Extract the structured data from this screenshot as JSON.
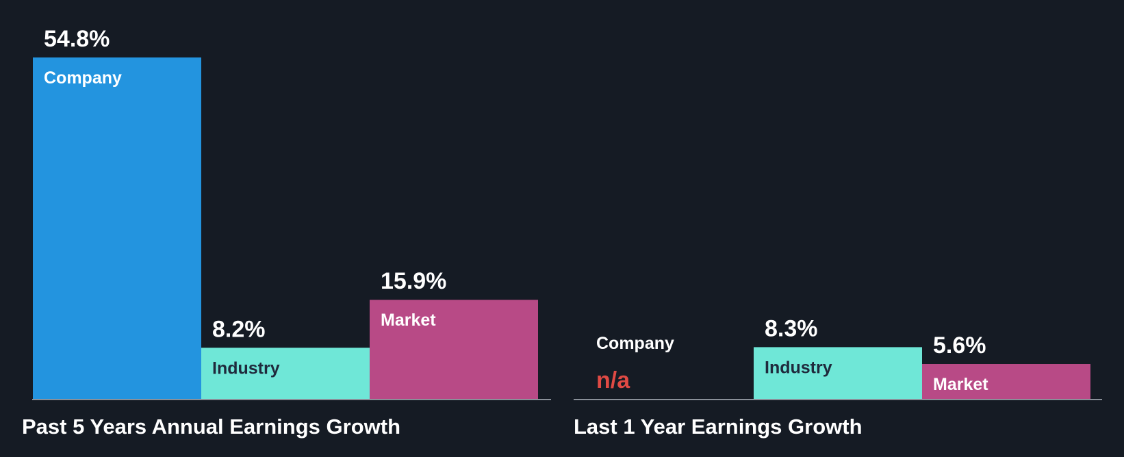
{
  "colors": {
    "background": "#151b24",
    "company": "#2394df",
    "industry": "#6fe7d7",
    "market": "#b84a86",
    "text_light": "#ffffff",
    "text_dark": "#1f2a3c",
    "na": "#e04a44",
    "axis": "#8a9099"
  },
  "chart_data": [
    {
      "type": "bar",
      "title": "Past 5 Years Annual Earnings Growth",
      "categories": [
        "Company",
        "Industry",
        "Market"
      ],
      "values": [
        54.8,
        8.2,
        15.9
      ],
      "value_labels": [
        "54.8%",
        "8.2%",
        "15.9%"
      ],
      "ylim": [
        0,
        54.8
      ],
      "unit": "%"
    },
    {
      "type": "bar",
      "title": "Last 1 Year Earnings Growth",
      "categories": [
        "Company",
        "Industry",
        "Market"
      ],
      "values": [
        null,
        8.3,
        5.6
      ],
      "value_labels": [
        "n/a",
        "8.3%",
        "5.6%"
      ],
      "ylim": [
        0,
        54.8
      ],
      "unit": "%"
    }
  ]
}
